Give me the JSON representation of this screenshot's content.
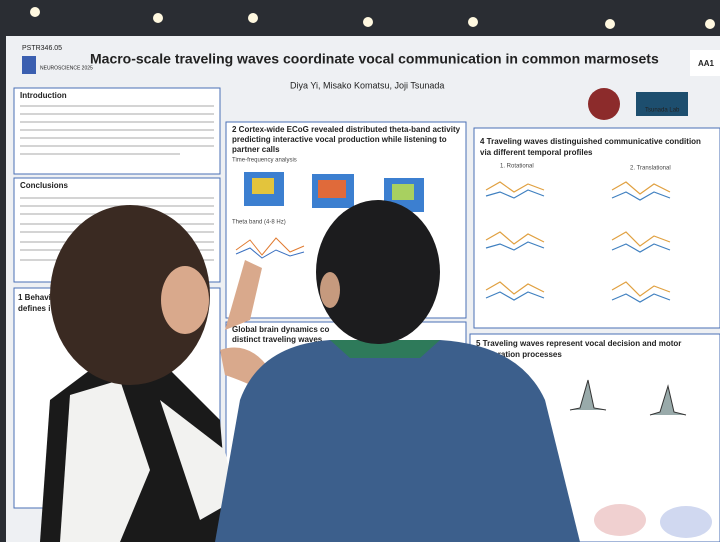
{
  "poster": {
    "id": "PSTR346.05",
    "logo": "NEUROSCIENCE 2025",
    "title": "Macro-scale traveling waves coordinate vocal communication in common marmosets",
    "authors": "Diya Yi, Misako Komatsu, Joji Tsunada",
    "lab": "Tsunada Lab",
    "board": "AA1",
    "left_sections": [
      "Introduction",
      "Conclusions",
      "1 Behavio",
      "defines i"
    ],
    "middle_sections": [
      "2 Cortex-wide ECoG revealed distributed theta-band activity",
      "predicting interactive vocal production while listening to",
      "partner calls",
      "Global brain dynamics co",
      "distinct traveling waves"
    ],
    "middle_labels": [
      "Time-frequency analysis",
      "Theta band (4-8 Hz)"
    ],
    "right_sections": [
      "4 Traveling waves distinguished communicative condition",
      "via different temporal profiles",
      "5 Traveling waves represent vocal decision and motor",
      "preparation processes"
    ],
    "right_labels": [
      "1. Rotational",
      "2. Translational"
    ]
  }
}
